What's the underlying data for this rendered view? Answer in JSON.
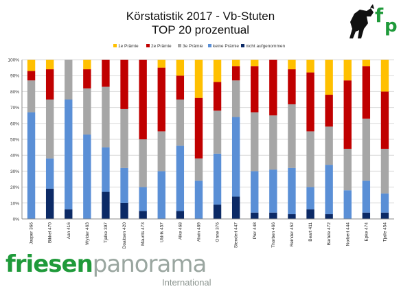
{
  "header": {
    "title_line1": "Körstatistik 2017 - Vb-Stuten",
    "title_line2": "TOP 20 prozentual"
  },
  "logo": {
    "icon": "horse-logo-icon",
    "letters": "fp"
  },
  "brand": {
    "part1": "friesen",
    "part2": "panorama",
    "sub": "International",
    "colors": {
      "green": "#1f9a3a",
      "grey": "#9aa6a0"
    }
  },
  "chart_data": {
    "type": "bar",
    "stacked": true,
    "normalized": true,
    "categories": [
      "Jasper 366",
      "Bikkel 470",
      "Aan 416",
      "Wylder 463",
      "Tjalke 397",
      "Doaitsen 420",
      "Maurits 473",
      "Uldrik 457",
      "Alke 468",
      "Alwin 469",
      "Onne 376",
      "Stendert 447",
      "Pier 448",
      "Thorben 466",
      "Reinder 452",
      "Beart 411",
      "Bartele 472",
      "Norbert 444",
      "Epke 474",
      "Tjalle 454"
    ],
    "series": [
      {
        "name": "nicht aufgenommen",
        "color": "#0c2a66",
        "values": [
          0,
          19,
          6,
          0,
          17,
          10,
          5,
          0,
          5,
          0,
          9,
          14,
          4,
          4,
          3,
          6,
          3,
          0,
          4,
          4
        ]
      },
      {
        "name": "keine Prämie",
        "color": "#5a8fd6",
        "values": [
          67,
          19,
          69,
          53,
          28,
          22,
          15,
          30,
          41,
          24,
          32,
          50,
          26,
          27,
          29,
          14,
          31,
          18,
          20,
          12
        ]
      },
      {
        "name": "3e Prämie",
        "color": "#a6a6a6",
        "values": [
          20,
          37,
          25,
          29,
          38,
          37,
          30,
          25,
          29,
          14,
          27,
          23,
          37,
          34,
          40,
          35,
          24,
          26,
          39,
          28
        ]
      },
      {
        "name": "2e Prämie",
        "color": "#c00000",
        "values": [
          6,
          19,
          0,
          12,
          17,
          31,
          50,
          40,
          15,
          38,
          18,
          9,
          29,
          35,
          22,
          37,
          20,
          43,
          33,
          36
        ]
      },
      {
        "name": "1e Prämie",
        "color": "#ffc000",
        "values": [
          7,
          6,
          0,
          6,
          0,
          0,
          0,
          5,
          10,
          24,
          14,
          4,
          4,
          0,
          6,
          8,
          22,
          13,
          4,
          20
        ]
      }
    ],
    "legend_order": [
      "1e Prämie",
      "2e Prämie",
      "3e Prämie",
      "keine Prämie",
      "nicht aufgenommen"
    ],
    "legend_position": "top",
    "y_ticks": [
      "0%",
      "10%",
      "20%",
      "30%",
      "40%",
      "50%",
      "60%",
      "70%",
      "80%",
      "90%",
      "100%"
    ],
    "ylim": [
      0,
      100
    ],
    "grid": true
  }
}
